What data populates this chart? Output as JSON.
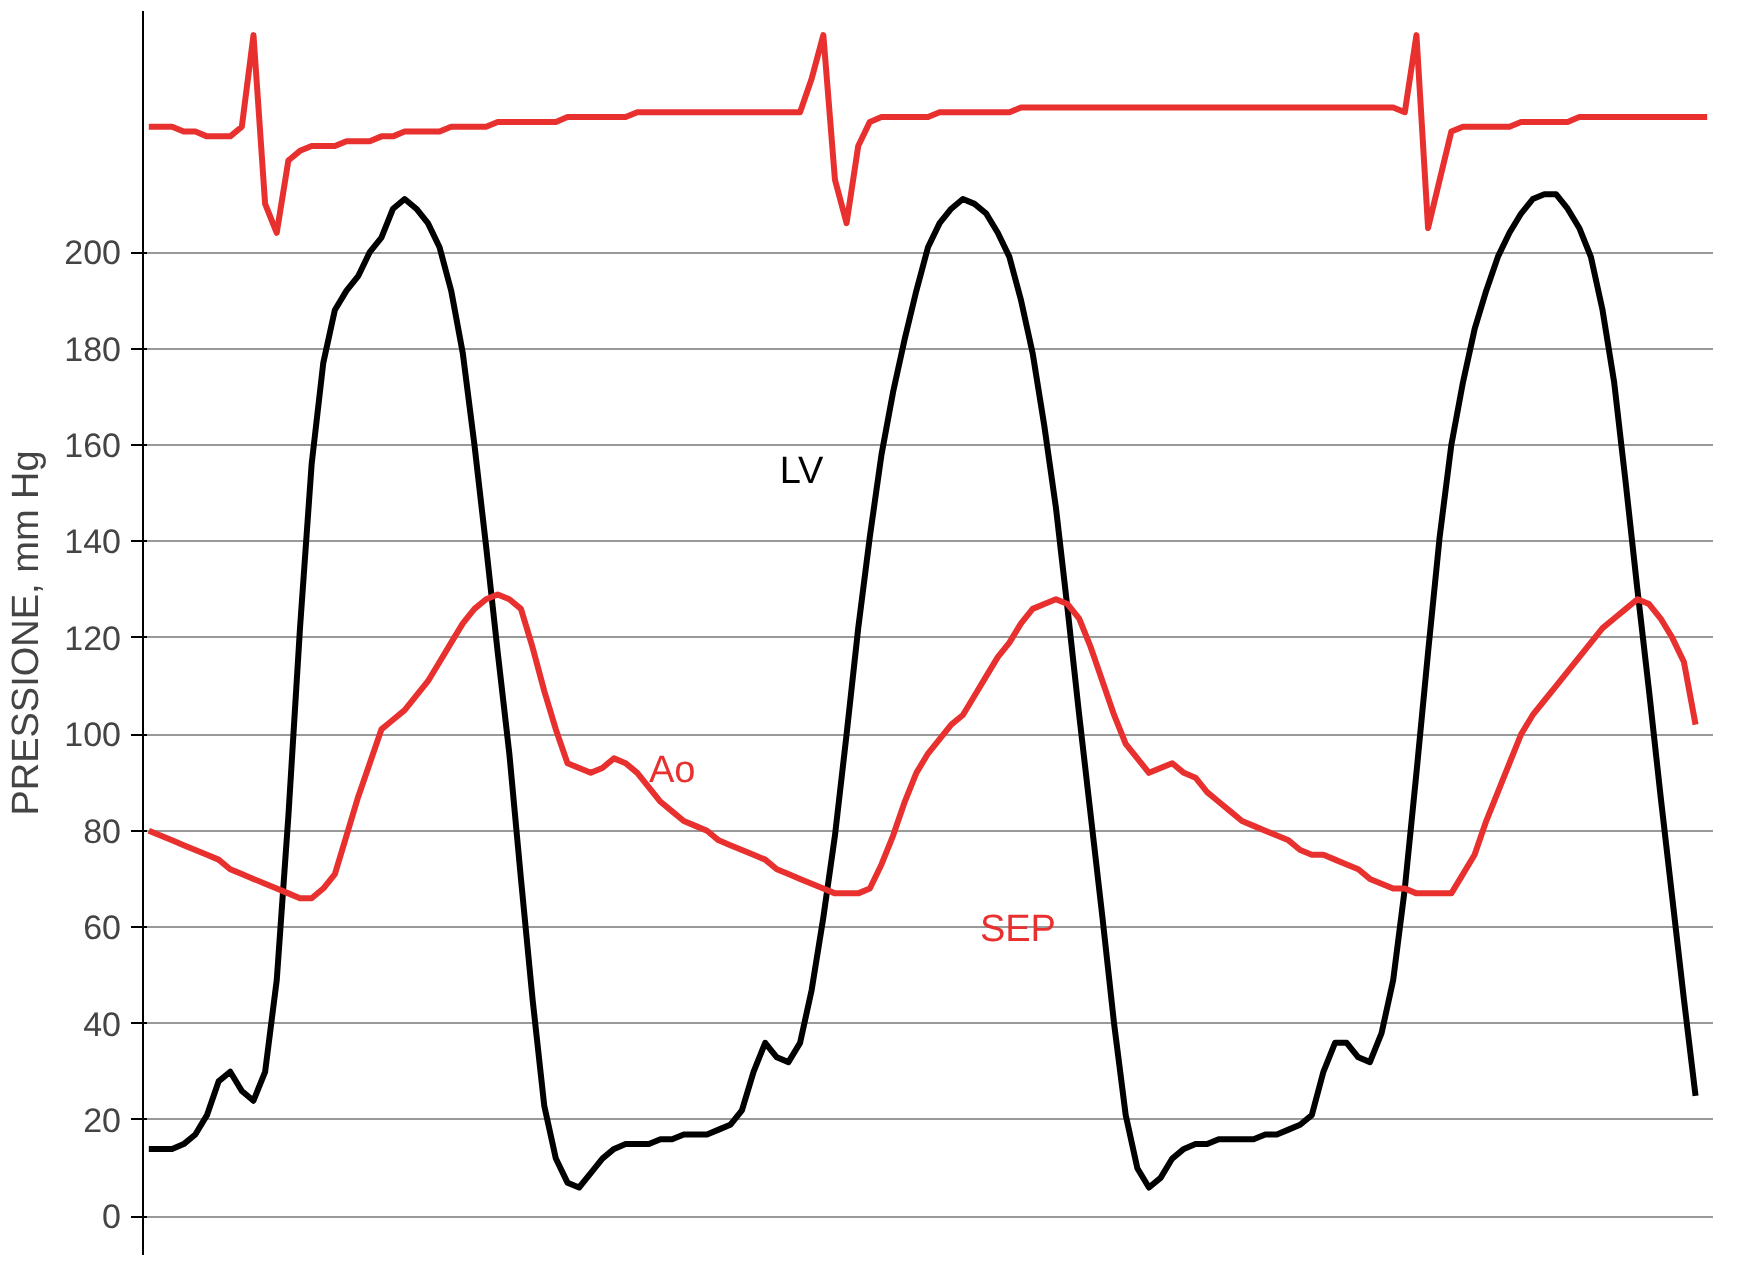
{
  "chart_data": {
    "type": "line",
    "ylabel": "PRESSIONE, mm Hg",
    "categories": [
      null,
      null,
      null,
      null,
      null,
      null,
      null,
      null,
      null,
      null,
      null,
      null,
      null,
      null,
      null,
      null,
      null,
      null,
      null,
      null,
      null,
      null,
      null,
      null,
      null,
      null,
      null,
      null,
      null,
      null,
      null,
      null,
      null,
      null,
      null,
      null,
      null,
      null,
      null,
      null,
      null,
      null,
      null,
      null,
      null,
      null,
      null,
      null,
      null,
      null,
      null,
      null,
      null,
      null,
      null,
      null,
      null,
      null,
      null,
      null,
      null,
      null,
      null,
      null,
      null,
      null,
      null,
      null,
      null,
      null,
      null,
      null,
      null,
      null,
      null,
      null,
      null,
      null,
      null,
      null,
      null,
      null,
      null,
      null,
      null,
      null,
      null,
      null,
      null,
      null,
      null,
      null,
      null,
      null,
      null,
      null,
      null,
      null,
      null,
      null,
      null,
      null,
      null,
      null,
      null,
      null,
      null,
      null,
      null,
      null,
      null,
      null,
      null,
      null,
      null,
      null,
      null,
      null,
      null,
      null,
      null,
      null,
      null,
      null,
      null,
      null,
      null,
      null,
      null,
      null,
      null,
      null,
      null,
      null,
      null
    ],
    "series": [
      {
        "color": "#e8312f",
        "values": [
          226,
          226,
          226,
          225,
          225,
          224,
          224,
          224,
          226,
          245,
          210,
          204,
          219,
          221,
          222,
          222,
          222,
          223,
          223,
          223,
          224,
          224,
          225,
          225,
          225,
          225,
          226,
          226,
          226,
          226,
          227,
          227,
          227,
          227,
          227,
          227,
          228,
          228,
          228,
          228,
          228,
          228,
          229,
          229,
          229,
          229,
          229,
          229,
          229,
          229,
          229,
          229,
          229,
          229,
          229,
          229,
          229,
          236,
          245,
          215,
          206,
          222,
          227,
          228,
          228,
          228,
          228,
          228,
          229,
          229,
          229,
          229,
          229,
          229,
          229,
          230,
          230,
          230,
          230,
          230,
          230,
          230,
          230,
          230,
          230,
          230,
          230,
          230,
          230,
          230,
          230,
          230,
          230,
          230,
          230,
          230,
          230,
          230,
          230,
          230,
          230,
          230,
          230,
          230,
          230,
          230,
          230,
          230,
          229,
          245,
          205,
          215,
          225,
          226,
          226,
          226,
          226,
          226,
          227,
          227,
          227,
          227,
          227,
          228,
          228,
          228,
          228,
          228,
          228,
          228,
          228,
          228,
          228,
          228,
          228
        ]
      },
      {
        "color": "#000000",
        "values": [
          14,
          14,
          14,
          15,
          17,
          21,
          28,
          30,
          26,
          24,
          30,
          49,
          83,
          122,
          156,
          177,
          188,
          192,
          195,
          200,
          203,
          209,
          211,
          209,
          206,
          201,
          192,
          179,
          160,
          139,
          117,
          96,
          70,
          45,
          23,
          12,
          7,
          6,
          9,
          12,
          14,
          15,
          15,
          15,
          16,
          16,
          17,
          17,
          17,
          18,
          19,
          22,
          30,
          36,
          33,
          32,
          36,
          47,
          62,
          79,
          100,
          122,
          141,
          158,
          171,
          182,
          192,
          201,
          206,
          209,
          211,
          210,
          208,
          204,
          199,
          190,
          179,
          164,
          147,
          126,
          104,
          83,
          62,
          40,
          21,
          10,
          6,
          8,
          12,
          14,
          15,
          15,
          16,
          16,
          16,
          16,
          17,
          17,
          18,
          19,
          21,
          30,
          36,
          36,
          33,
          32,
          38,
          49,
          68,
          92,
          117,
          141,
          160,
          173,
          184,
          192,
          199,
          204,
          208,
          211,
          212,
          212,
          209,
          205,
          199,
          188,
          173,
          152,
          130,
          109,
          87,
          66,
          45,
          25,
          null
        ]
      },
      {
        "color": "#e8312f",
        "values": [
          80,
          79,
          78,
          77,
          76,
          75,
          74,
          72,
          71,
          70,
          69,
          68,
          67,
          66,
          66,
          68,
          71,
          79,
          87,
          94,
          101,
          103,
          105,
          108,
          111,
          115,
          119,
          123,
          126,
          128,
          129,
          128,
          126,
          118,
          109,
          101,
          94,
          93,
          92,
          93,
          95,
          94,
          92,
          89,
          86,
          84,
          82,
          81,
          80,
          78,
          77,
          76,
          75,
          74,
          72,
          71,
          70,
          69,
          68,
          67,
          67,
          67,
          68,
          73,
          79,
          86,
          92,
          96,
          99,
          102,
          104,
          108,
          112,
          116,
          119,
          123,
          126,
          127,
          128,
          127,
          124,
          118,
          111,
          104,
          98,
          95,
          92,
          93,
          94,
          92,
          91,
          88,
          86,
          84,
          82,
          81,
          80,
          79,
          78,
          76,
          75,
          75,
          74,
          73,
          72,
          70,
          69,
          68,
          68,
          67,
          67,
          67,
          67,
          71,
          75,
          82,
          88,
          94,
          100,
          104,
          107,
          110,
          113,
          116,
          119,
          122,
          124,
          126,
          128,
          127,
          124,
          120,
          115,
          102,
          null
        ]
      }
    ],
    "annotations": [
      "LV",
      "Ao",
      "SEP"
    ],
    "ylim": [
      -8,
      250
    ],
    "yticks": [
      0,
      20,
      40,
      60,
      80,
      100,
      120,
      140,
      160,
      180,
      200
    ],
    "grid": "y"
  }
}
